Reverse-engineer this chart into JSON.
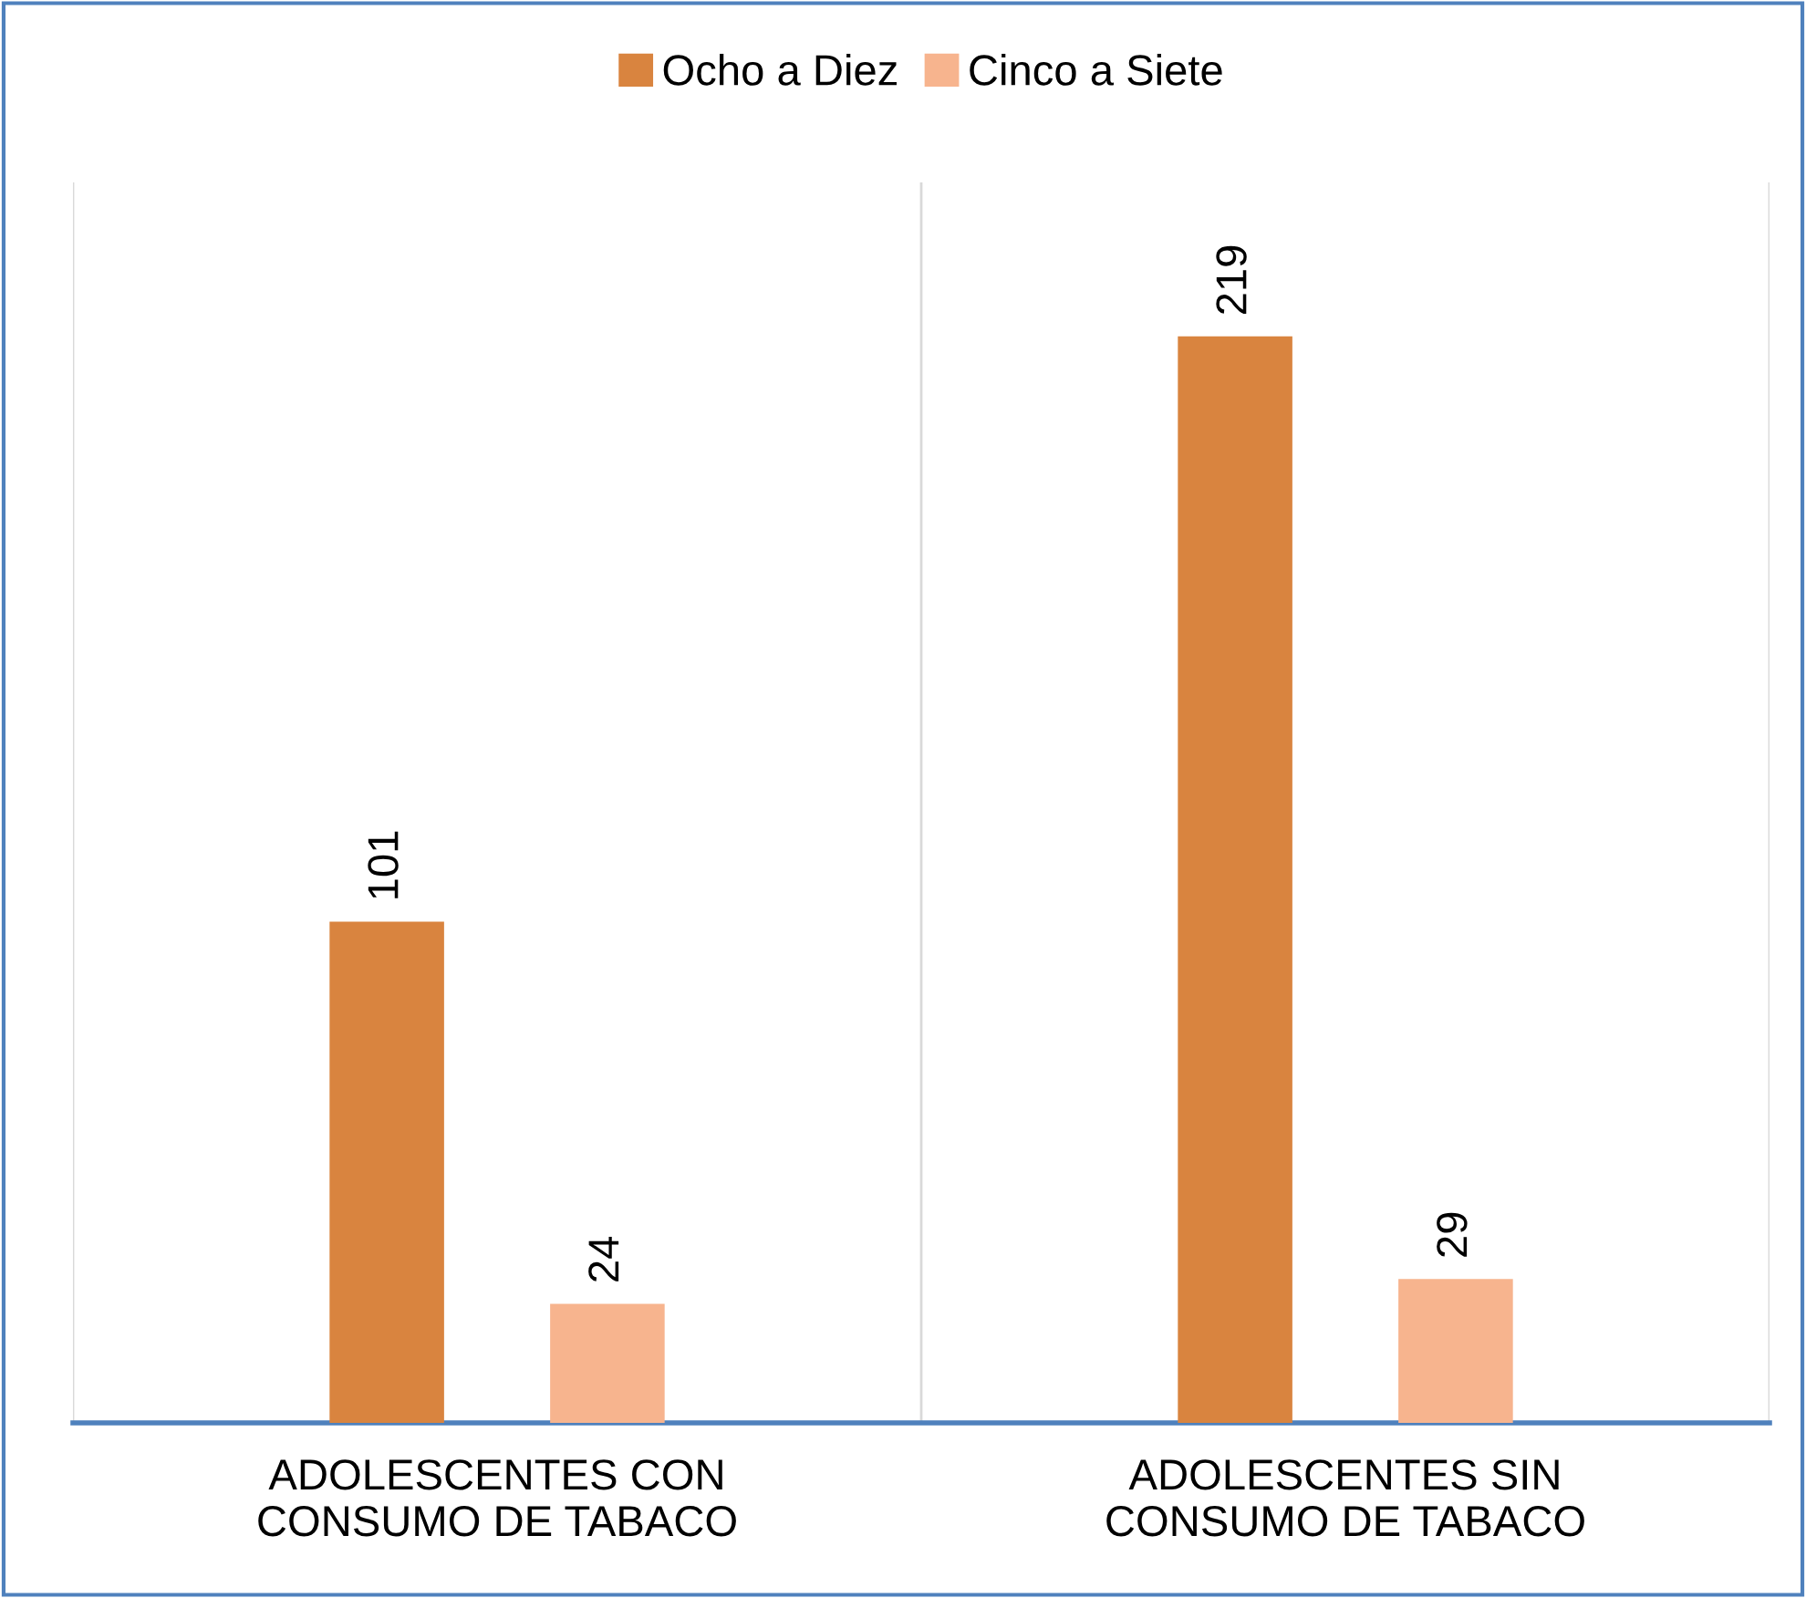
{
  "chart_data": {
    "type": "bar",
    "categories": [
      "ADOLESCENTES CON\nCONSUMO DE TABACO",
      "ADOLESCENTES SIN\nCONSUMO DE TABACO"
    ],
    "series": [
      {
        "name": "Ocho a Diez",
        "color": "#d9843f",
        "values": [
          101,
          219
        ]
      },
      {
        "name": "Cinco a Siete",
        "color": "#f7b48e",
        "values": [
          24,
          29
        ]
      }
    ],
    "ylim": [
      0,
      250
    ],
    "tick_labels": "x",
    "data_labels": true,
    "grid": "x",
    "legend": "top"
  }
}
